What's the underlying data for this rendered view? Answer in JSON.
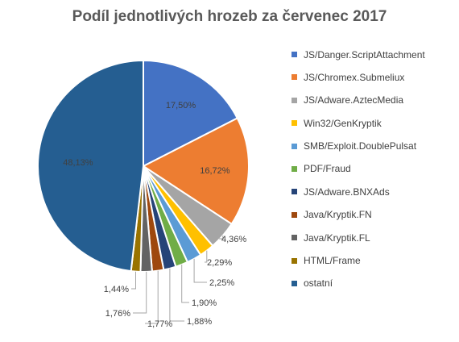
{
  "chart_data": {
    "type": "pie",
    "title": "Podíl jednotlivých hrozeb za červenec 2017",
    "legend_position": "right",
    "slices": [
      {
        "name": "JS/Danger.ScriptAttachment",
        "value": 17.5,
        "label": "17,50%",
        "color": "#4472c4"
      },
      {
        "name": "JS/Chromex.Submeliux",
        "value": 16.72,
        "label": "16,72%",
        "color": "#ed7d31"
      },
      {
        "name": "JS/Adware.AztecMedia",
        "value": 4.36,
        "label": "4,36%",
        "color": "#a5a5a5"
      },
      {
        "name": "Win32/GenKryptik",
        "value": 2.29,
        "label": "2,29%",
        "color": "#ffc000"
      },
      {
        "name": "SMB/Exploit.DoublePulsat",
        "value": 2.25,
        "label": "2,25%",
        "color": "#5b9bd5"
      },
      {
        "name": "PDF/Fraud",
        "value": 1.9,
        "label": "1,90%",
        "color": "#70ad47"
      },
      {
        "name": "JS/Adware.BNXAds",
        "value": 1.88,
        "label": "1,88%",
        "color": "#264478"
      },
      {
        "name": "Java/Kryptik.FN",
        "value": 1.77,
        "label": "1,77%",
        "color": "#9e480e"
      },
      {
        "name": "Java/Kryptik.FL",
        "value": 1.76,
        "label": "1,76%",
        "color": "#636363"
      },
      {
        "name": "HTML/Frame",
        "value": 1.44,
        "label": "1,44%",
        "color": "#997300"
      },
      {
        "name": "ostatní",
        "value": 48.13,
        "label": "48,13%",
        "color": "#255e91"
      }
    ]
  }
}
